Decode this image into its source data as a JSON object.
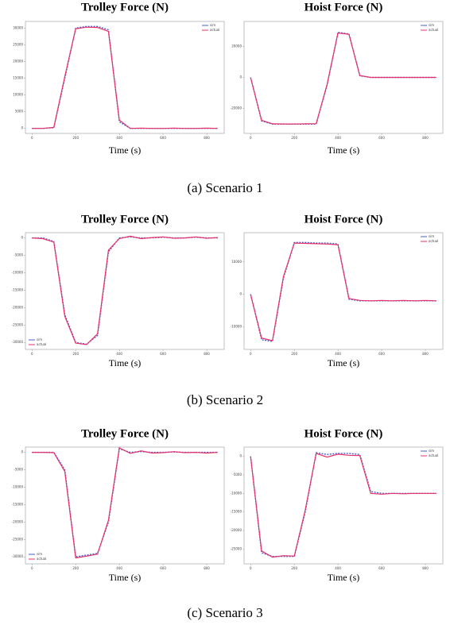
{
  "chart_data": [
    {
      "type": "line",
      "title": "Trolley Force (N)",
      "x_label": "Time (s)",
      "x": [
        0,
        50,
        100,
        150,
        200,
        250,
        300,
        350,
        400,
        450,
        500,
        550,
        600,
        650,
        700,
        750,
        800,
        850
      ],
      "series": [
        {
          "name": "sim",
          "color": "#4a5fd0",
          "values": [
            0,
            0,
            200,
            15000,
            30000,
            30500,
            30500,
            29500,
            2000,
            0,
            0,
            0,
            0,
            0,
            0,
            0,
            0,
            0
          ]
        },
        {
          "name": "actual",
          "color": "#e8306a",
          "values": [
            0,
            0,
            300,
            15500,
            29800,
            30300,
            30200,
            29000,
            2500,
            0,
            100,
            0,
            0,
            100,
            0,
            0,
            100,
            0
          ]
        }
      ],
      "xlim": [
        -30,
        880
      ],
      "ylim": [
        -1500,
        32000
      ],
      "xticks": [
        0,
        200,
        400,
        600,
        800
      ],
      "yticks": [
        0,
        5000,
        10000,
        15000,
        20000,
        25000,
        30000
      ],
      "legend": "upper right"
    },
    {
      "type": "line",
      "title": "Hoist Force (N)",
      "x_label": "Time (s)",
      "x": [
        0,
        50,
        100,
        150,
        200,
        250,
        300,
        350,
        400,
        450,
        500,
        550,
        600,
        650,
        700,
        750,
        800,
        850
      ],
      "series": [
        {
          "name": "sim",
          "color": "#4a5fd0",
          "values": [
            0,
            -28000,
            -30000,
            -30000,
            -30000,
            -30000,
            -30000,
            -5000,
            29000,
            28000,
            1000,
            0,
            0,
            0,
            0,
            0,
            0,
            0
          ]
        },
        {
          "name": "actual",
          "color": "#e8306a",
          "values": [
            0,
            -27500,
            -29800,
            -29900,
            -29900,
            -29800,
            -29700,
            -4500,
            28500,
            27800,
            1200,
            0,
            0,
            0,
            0,
            0,
            0,
            0
          ]
        }
      ],
      "xlim": [
        -30,
        880
      ],
      "ylim": [
        -36000,
        36000
      ],
      "xticks": [
        0,
        200,
        400,
        600,
        800
      ],
      "yticks": [
        -20000,
        0,
        20000
      ],
      "legend": "upper right"
    },
    {
      "type": "line",
      "title": "Trolley Force (N)",
      "x_label": "Time (s)",
      "x": [
        0,
        50,
        100,
        150,
        200,
        250,
        300,
        350,
        400,
        450,
        500,
        550,
        600,
        650,
        700,
        750,
        800,
        850
      ],
      "series": [
        {
          "name": "sim",
          "color": "#4a5fd0",
          "values": [
            0,
            0,
            -1000,
            -22000,
            -30000,
            -30500,
            -28000,
            -4000,
            0,
            300,
            0,
            0,
            200,
            0,
            0,
            200,
            0,
            0
          ]
        },
        {
          "name": "actual",
          "color": "#e8306a",
          "values": [
            0,
            -200,
            -1200,
            -22500,
            -30200,
            -30600,
            -27500,
            -3500,
            -200,
            500,
            -200,
            100,
            300,
            -100,
            0,
            300,
            -100,
            100
          ]
        }
      ],
      "xlim": [
        -30,
        880
      ],
      "ylim": [
        -32000,
        1500
      ],
      "xticks": [
        0,
        200,
        400,
        600,
        800
      ],
      "yticks": [
        0,
        -5000,
        -10000,
        -15000,
        -20000,
        -25000,
        -30000
      ],
      "legend": "lower left"
    },
    {
      "type": "line",
      "title": "Hoist Force (N)",
      "x_label": "Time (s)",
      "x": [
        0,
        50,
        100,
        150,
        200,
        250,
        300,
        350,
        400,
        450,
        500,
        550,
        600,
        650,
        700,
        750,
        800,
        850
      ],
      "series": [
        {
          "name": "sim",
          "color": "#4a5fd0",
          "values": [
            0,
            -14000,
            -14500,
            5000,
            16000,
            16000,
            15800,
            15800,
            15500,
            -1500,
            -2000,
            -2000,
            -2000,
            -2000,
            -2000,
            -2000,
            -2000,
            -2000
          ]
        },
        {
          "name": "actual",
          "color": "#e8306a",
          "values": [
            0,
            -13500,
            -14300,
            5500,
            15800,
            15700,
            15600,
            15500,
            15300,
            -1300,
            -1900,
            -2000,
            -1900,
            -2000,
            -1900,
            -2000,
            -1900,
            -2000
          ]
        }
      ],
      "xlim": [
        -30,
        880
      ],
      "ylim": [
        -17000,
        19000
      ],
      "xticks": [
        0,
        200,
        400,
        600,
        800
      ],
      "yticks": [
        -10000,
        0,
        10000
      ],
      "legend": "upper right"
    },
    {
      "type": "line",
      "title": "Trolley Force (N)",
      "x_label": "Time (s)",
      "x": [
        0,
        50,
        100,
        150,
        200,
        250,
        300,
        350,
        400,
        450,
        500,
        550,
        600,
        650,
        700,
        750,
        800,
        850
      ],
      "series": [
        {
          "name": "sim",
          "color": "#4a5fd0",
          "values": [
            0,
            0,
            0,
            -5000,
            -30000,
            -29500,
            -29000,
            -20000,
            1000,
            0,
            200,
            0,
            0,
            100,
            0,
            0,
            0,
            0
          ]
        },
        {
          "name": "actual",
          "color": "#e8306a",
          "values": [
            0,
            0,
            -100,
            -5500,
            -30300,
            -29800,
            -29200,
            -19500,
            1300,
            -300,
            400,
            -200,
            -100,
            200,
            -100,
            0,
            -200,
            0
          ]
        }
      ],
      "xlim": [
        -30,
        880
      ],
      "ylim": [
        -32000,
        1500
      ],
      "xticks": [
        0,
        200,
        400,
        600,
        800
      ],
      "yticks": [
        0,
        -5000,
        -10000,
        -15000,
        -20000,
        -25000,
        -30000
      ],
      "legend": "lower left"
    },
    {
      "type": "line",
      "title": "Hoist Force (N)",
      "x_label": "Time (s)",
      "x": [
        0,
        50,
        100,
        150,
        200,
        250,
        300,
        350,
        400,
        450,
        500,
        550,
        600,
        650,
        700,
        750,
        800,
        850
      ],
      "series": [
        {
          "name": "sim",
          "color": "#4a5fd0",
          "values": [
            0,
            -26000,
            -27000,
            -27000,
            -27000,
            -15000,
            1000,
            500,
            800,
            800,
            500,
            -9500,
            -10000,
            -10000,
            -10000,
            -10000,
            -10000,
            -10000
          ]
        },
        {
          "name": "actual",
          "color": "#e8306a",
          "values": [
            0,
            -25500,
            -27200,
            -26800,
            -26900,
            -14500,
            800,
            -200,
            600,
            300,
            200,
            -10000,
            -10200,
            -10000,
            -10100,
            -10000,
            -10000,
            -10000
          ]
        }
      ],
      "xlim": [
        -30,
        880
      ],
      "ylim": [
        -29000,
        2500
      ],
      "xticks": [
        0,
        200,
        400,
        600,
        800
      ],
      "yticks": [
        0,
        -5000,
        -10000,
        -15000,
        -20000,
        -25000
      ],
      "legend": "upper right"
    }
  ],
  "captions": [
    "(a) Scenario 1",
    "(b) Scenario 2",
    "(c) Scenario 3"
  ]
}
